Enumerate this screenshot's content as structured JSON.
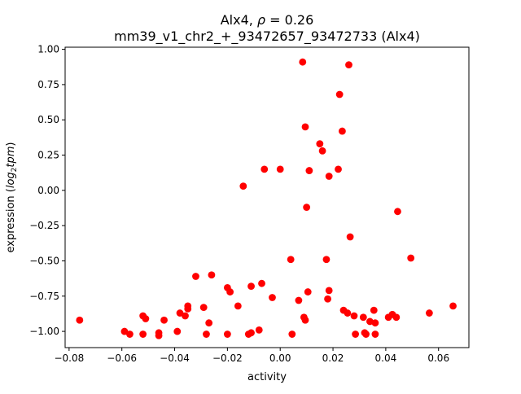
{
  "chart_data": {
    "type": "scatter",
    "title_line1_prefix": "Alx4, ",
    "title_line1_rho": "ρ",
    "title_line1_suffix": " = 0.26",
    "title_line2": "mm39_v1_chr2_+_93472657_93472733 (Alx4)",
    "xlabel": "activity",
    "ylabel_prefix": "expression (",
    "ylabel_log": "log",
    "ylabel_sub": "2",
    "ylabel_tpm": "tpm",
    "ylabel_suffix": ")",
    "xlim": [
      -0.0815,
      0.0715
    ],
    "ylim": [
      -1.115,
      1.015
    ],
    "x_ticks": [
      -0.08,
      -0.06,
      -0.04,
      -0.02,
      0.0,
      0.02,
      0.04,
      0.06
    ],
    "x_tick_labels": [
      "−0.08",
      "−0.06",
      "−0.04",
      "−0.02",
      "0.00",
      "0.02",
      "0.04",
      "0.06"
    ],
    "y_ticks": [
      1.0,
      0.75,
      0.5,
      0.25,
      0.0,
      -0.25,
      -0.5,
      -0.75,
      -1.0
    ],
    "y_tick_labels": [
      "1.00",
      "0.75",
      "0.50",
      "0.25",
      "0.00",
      "−0.25",
      "−0.50",
      "−0.75",
      "−1.00"
    ],
    "marker_color": "#ff0000",
    "grid": false,
    "points": [
      {
        "x": -0.076,
        "y": -0.92
      },
      {
        "x": -0.059,
        "y": -1.0
      },
      {
        "x": -0.057,
        "y": -1.02
      },
      {
        "x": -0.052,
        "y": -1.02
      },
      {
        "x": -0.052,
        "y": -0.89
      },
      {
        "x": -0.051,
        "y": -0.91
      },
      {
        "x": -0.046,
        "y": -1.01
      },
      {
        "x": -0.046,
        "y": -1.03
      },
      {
        "x": -0.044,
        "y": -0.92
      },
      {
        "x": -0.039,
        "y": -1.0
      },
      {
        "x": -0.038,
        "y": -0.87
      },
      {
        "x": -0.036,
        "y": -0.89
      },
      {
        "x": -0.035,
        "y": -0.82
      },
      {
        "x": -0.035,
        "y": -0.84
      },
      {
        "x": -0.032,
        "y": -0.61
      },
      {
        "x": -0.029,
        "y": -0.83
      },
      {
        "x": -0.028,
        "y": -1.02
      },
      {
        "x": -0.027,
        "y": -0.94
      },
      {
        "x": -0.026,
        "y": -0.6
      },
      {
        "x": -0.02,
        "y": -0.69
      },
      {
        "x": -0.02,
        "y": -1.02
      },
      {
        "x": -0.019,
        "y": -0.72
      },
      {
        "x": -0.016,
        "y": -0.82
      },
      {
        "x": -0.014,
        "y": 0.03
      },
      {
        "x": -0.012,
        "y": -1.02
      },
      {
        "x": -0.011,
        "y": -1.01
      },
      {
        "x": -0.011,
        "y": -0.68
      },
      {
        "x": -0.008,
        "y": -0.99
      },
      {
        "x": -0.007,
        "y": -0.66
      },
      {
        "x": -0.006,
        "y": 0.15
      },
      {
        "x": -0.003,
        "y": -0.76
      },
      {
        "x": 0.0,
        "y": 0.15
      },
      {
        "x": 0.004,
        "y": -0.49
      },
      {
        "x": 0.0045,
        "y": -1.02
      },
      {
        "x": 0.007,
        "y": -0.78
      },
      {
        "x": 0.0085,
        "y": 0.91
      },
      {
        "x": 0.009,
        "y": -0.9
      },
      {
        "x": 0.0095,
        "y": -0.92
      },
      {
        "x": 0.0095,
        "y": 0.45
      },
      {
        "x": 0.01,
        "y": -0.12
      },
      {
        "x": 0.0105,
        "y": -0.72
      },
      {
        "x": 0.011,
        "y": 0.14
      },
      {
        "x": 0.015,
        "y": 0.33
      },
      {
        "x": 0.016,
        "y": 0.28
      },
      {
        "x": 0.0175,
        "y": -0.49
      },
      {
        "x": 0.018,
        "y": -0.77
      },
      {
        "x": 0.0185,
        "y": -0.71
      },
      {
        "x": 0.0185,
        "y": 0.1
      },
      {
        "x": 0.022,
        "y": 0.15
      },
      {
        "x": 0.0225,
        "y": 0.68
      },
      {
        "x": 0.0235,
        "y": 0.42
      },
      {
        "x": 0.024,
        "y": -0.85
      },
      {
        "x": 0.0255,
        "y": -0.87
      },
      {
        "x": 0.026,
        "y": 0.89
      },
      {
        "x": 0.0265,
        "y": -0.33
      },
      {
        "x": 0.028,
        "y": -0.89
      },
      {
        "x": 0.0285,
        "y": -1.02
      },
      {
        "x": 0.0315,
        "y": -0.9
      },
      {
        "x": 0.032,
        "y": -1.01
      },
      {
        "x": 0.0325,
        "y": -1.02
      },
      {
        "x": 0.034,
        "y": -0.93
      },
      {
        "x": 0.0355,
        "y": -0.85
      },
      {
        "x": 0.036,
        "y": -1.02
      },
      {
        "x": 0.036,
        "y": -0.94
      },
      {
        "x": 0.041,
        "y": -0.9
      },
      {
        "x": 0.0425,
        "y": -0.88
      },
      {
        "x": 0.044,
        "y": -0.9
      },
      {
        "x": 0.0445,
        "y": -0.15
      },
      {
        "x": 0.0495,
        "y": -0.48
      },
      {
        "x": 0.0565,
        "y": -0.87
      },
      {
        "x": 0.0655,
        "y": -0.82
      }
    ]
  }
}
